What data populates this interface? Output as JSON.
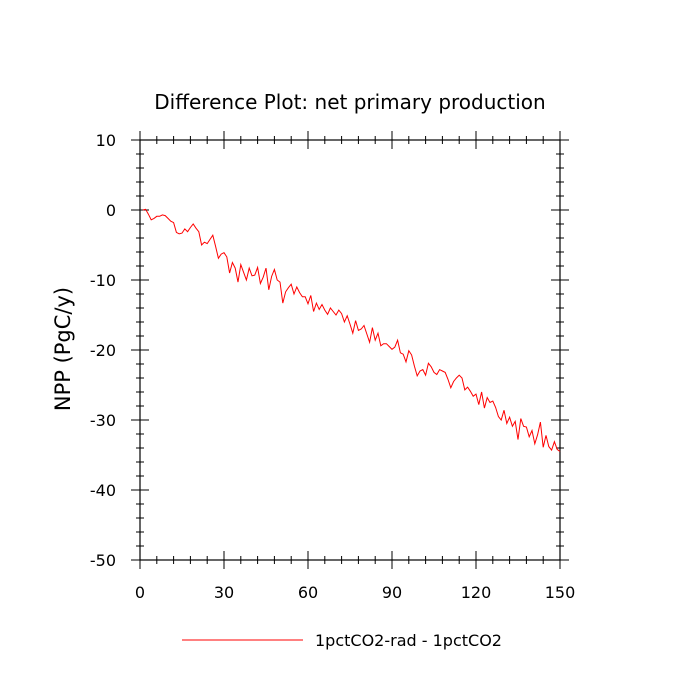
{
  "chart_data": {
    "type": "line",
    "title": "Difference Plot: net primary production",
    "xlabel": "",
    "ylabel": "NPP  (PgC/y)",
    "xlim": [
      0,
      150
    ],
    "ylim": [
      -50,
      10
    ],
    "xticks": [
      0,
      30,
      60,
      90,
      120,
      150
    ],
    "yticks": [
      10,
      0,
      -10,
      -20,
      -30,
      -40,
      -50
    ],
    "grid": false,
    "legend_position": "bottom",
    "series": [
      {
        "name": "1pctCO2-rad - 1pctCO2",
        "color": "#ff0000",
        "x": [
          1,
          2,
          3,
          4,
          5,
          6,
          7,
          8,
          9,
          10,
          11,
          12,
          13,
          14,
          15,
          16,
          17,
          18,
          19,
          20,
          21,
          22,
          23,
          24,
          25,
          26,
          27,
          28,
          29,
          30,
          31,
          32,
          33,
          34,
          35,
          36,
          37,
          38,
          39,
          40,
          41,
          42,
          43,
          44,
          45,
          46,
          47,
          48,
          49,
          50,
          51,
          52,
          53,
          54,
          55,
          56,
          57,
          58,
          59,
          60,
          61,
          62,
          63,
          64,
          65,
          66,
          67,
          68,
          69,
          70,
          71,
          72,
          73,
          74,
          75,
          76,
          77,
          78,
          79,
          80,
          81,
          82,
          83,
          84,
          85,
          86,
          87,
          88,
          89,
          90,
          91,
          92,
          93,
          94,
          95,
          96,
          97,
          98,
          99,
          100,
          101,
          102,
          103,
          104,
          105,
          106,
          107,
          108,
          109,
          110,
          111,
          112,
          113,
          114,
          115,
          116,
          117,
          118,
          119,
          120,
          121,
          122,
          123,
          124,
          125,
          126,
          127,
          128,
          129,
          130,
          131,
          132,
          133,
          134,
          135,
          136,
          137,
          138,
          139,
          140,
          141,
          142,
          143,
          144,
          145,
          146,
          147,
          148,
          149,
          150
        ],
        "y": [
          0.0,
          0.1,
          -0.6,
          -1.4,
          -1.2,
          -0.9,
          -0.9,
          -0.7,
          -0.8,
          -1.2,
          -1.6,
          -1.8,
          -3.2,
          -3.4,
          -3.3,
          -2.7,
          -3.1,
          -2.5,
          -2.0,
          -2.6,
          -3.1,
          -5.0,
          -4.6,
          -4.8,
          -4.2,
          -3.6,
          -5.2,
          -6.9,
          -6.3,
          -6.1,
          -6.7,
          -9.0,
          -7.5,
          -8.3,
          -10.3,
          -7.8,
          -8.9,
          -10.0,
          -8.3,
          -9.4,
          -9.3,
          -8.2,
          -10.5,
          -9.6,
          -8.3,
          -11.4,
          -9.5,
          -8.5,
          -10.0,
          -10.3,
          -13.3,
          -11.7,
          -11.1,
          -10.6,
          -12.0,
          -11.0,
          -11.8,
          -12.4,
          -12.4,
          -13.4,
          -12.2,
          -14.5,
          -13.3,
          -14.2,
          -13.5,
          -14.3,
          -14.9,
          -14.0,
          -14.5,
          -15.0,
          -14.3,
          -14.8,
          -16.0,
          -15.1,
          -16.3,
          -17.6,
          -15.8,
          -17.2,
          -17.0,
          -16.5,
          -17.7,
          -18.9,
          -16.8,
          -18.6,
          -17.6,
          -19.4,
          -19.1,
          -19.1,
          -19.5,
          -19.9,
          -19.6,
          -18.6,
          -20.4,
          -20.6,
          -21.7,
          -20.1,
          -20.7,
          -22.3,
          -23.7,
          -23.0,
          -22.8,
          -23.6,
          -21.9,
          -22.4,
          -23.2,
          -23.5,
          -22.8,
          -23.0,
          -23.2,
          -24.2,
          -25.4,
          -24.5,
          -24.0,
          -23.6,
          -24.0,
          -25.7,
          -25.3,
          -25.9,
          -26.6,
          -26.3,
          -27.8,
          -26.0,
          -28.3,
          -26.8,
          -27.5,
          -27.3,
          -28.2,
          -29.5,
          -30.0,
          -28.6,
          -30.5,
          -29.6,
          -30.9,
          -30.2,
          -32.8,
          -29.8,
          -30.9,
          -31.0,
          -32.4,
          -31.5,
          -33.4,
          -32.1,
          -30.3,
          -33.9,
          -32.2,
          -33.8,
          -34.3,
          -33.1,
          -34.2,
          -34.5
        ]
      }
    ]
  }
}
